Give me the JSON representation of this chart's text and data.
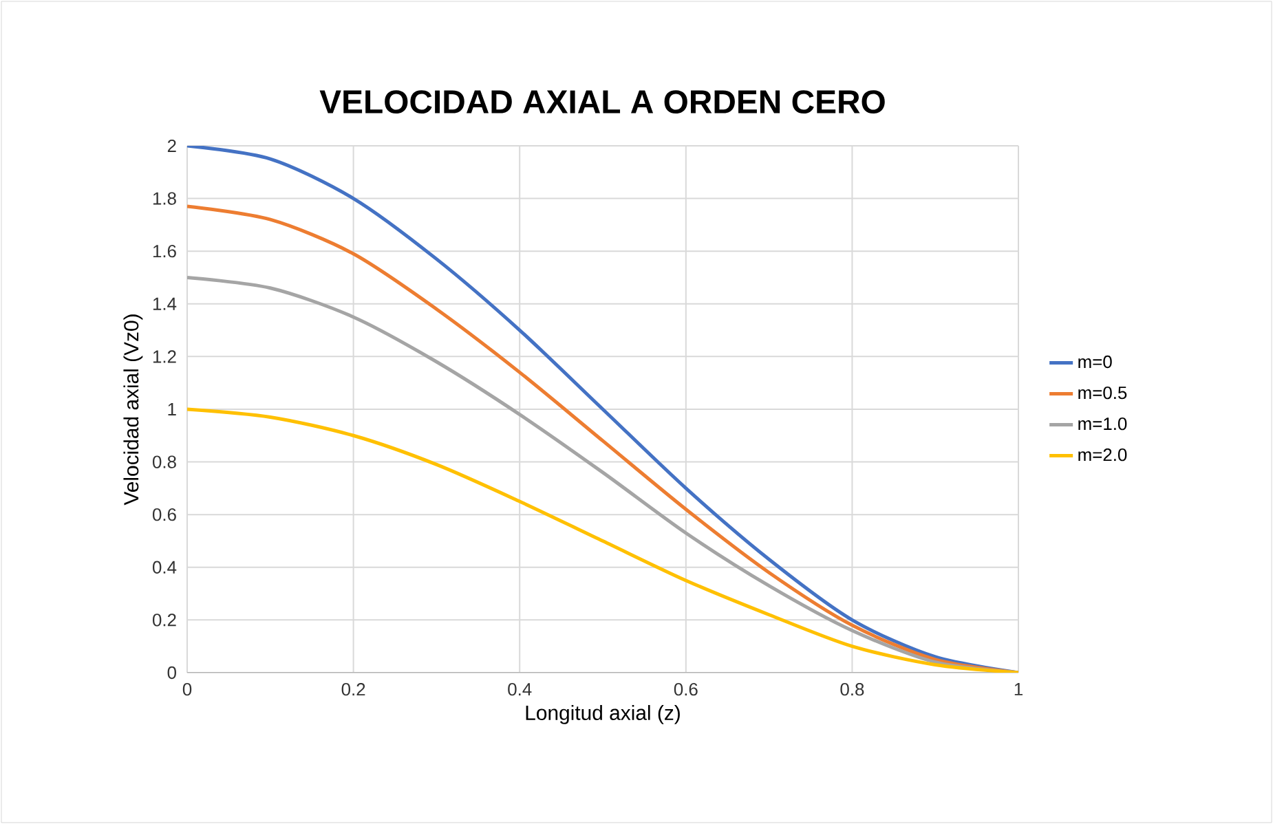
{
  "chart_data": {
    "type": "line",
    "title": "VELOCIDAD AXIAL A ORDEN CERO",
    "xlabel": "Longitud axial (z)",
    "ylabel": "Velocidad axial (Vz0)",
    "x": [
      0,
      0.1,
      0.2,
      0.3,
      0.4,
      0.5,
      0.6,
      0.7,
      0.8,
      0.9,
      1.0
    ],
    "series": [
      {
        "name": "m=0",
        "color": "#4472c4",
        "values": [
          2.0,
          1.95,
          1.8,
          1.57,
          1.3,
          1.0,
          0.7,
          0.43,
          0.2,
          0.06,
          0
        ]
      },
      {
        "name": "m=0.5",
        "color": "#ed7d31",
        "values": [
          1.77,
          1.72,
          1.59,
          1.38,
          1.14,
          0.88,
          0.62,
          0.38,
          0.18,
          0.05,
          0
        ]
      },
      {
        "name": "m=1.0",
        "color": "#a5a5a5",
        "values": [
          1.5,
          1.46,
          1.35,
          1.18,
          0.98,
          0.76,
          0.53,
          0.33,
          0.16,
          0.04,
          0
        ]
      },
      {
        "name": "m=2.0",
        "color": "#ffc000",
        "values": [
          1.0,
          0.97,
          0.9,
          0.79,
          0.65,
          0.5,
          0.35,
          0.22,
          0.1,
          0.03,
          0
        ]
      }
    ],
    "xlim": [
      0,
      1
    ],
    "ylim": [
      0,
      2
    ],
    "xticks": [
      0,
      0.2,
      0.4,
      0.6,
      0.8,
      1
    ],
    "yticks": [
      0,
      0.2,
      0.4,
      0.6,
      0.8,
      1,
      1.2,
      1.4,
      1.6,
      1.8,
      2
    ],
    "grid": true,
    "legend": "right",
    "marker": "none",
    "line_style": "solid"
  }
}
